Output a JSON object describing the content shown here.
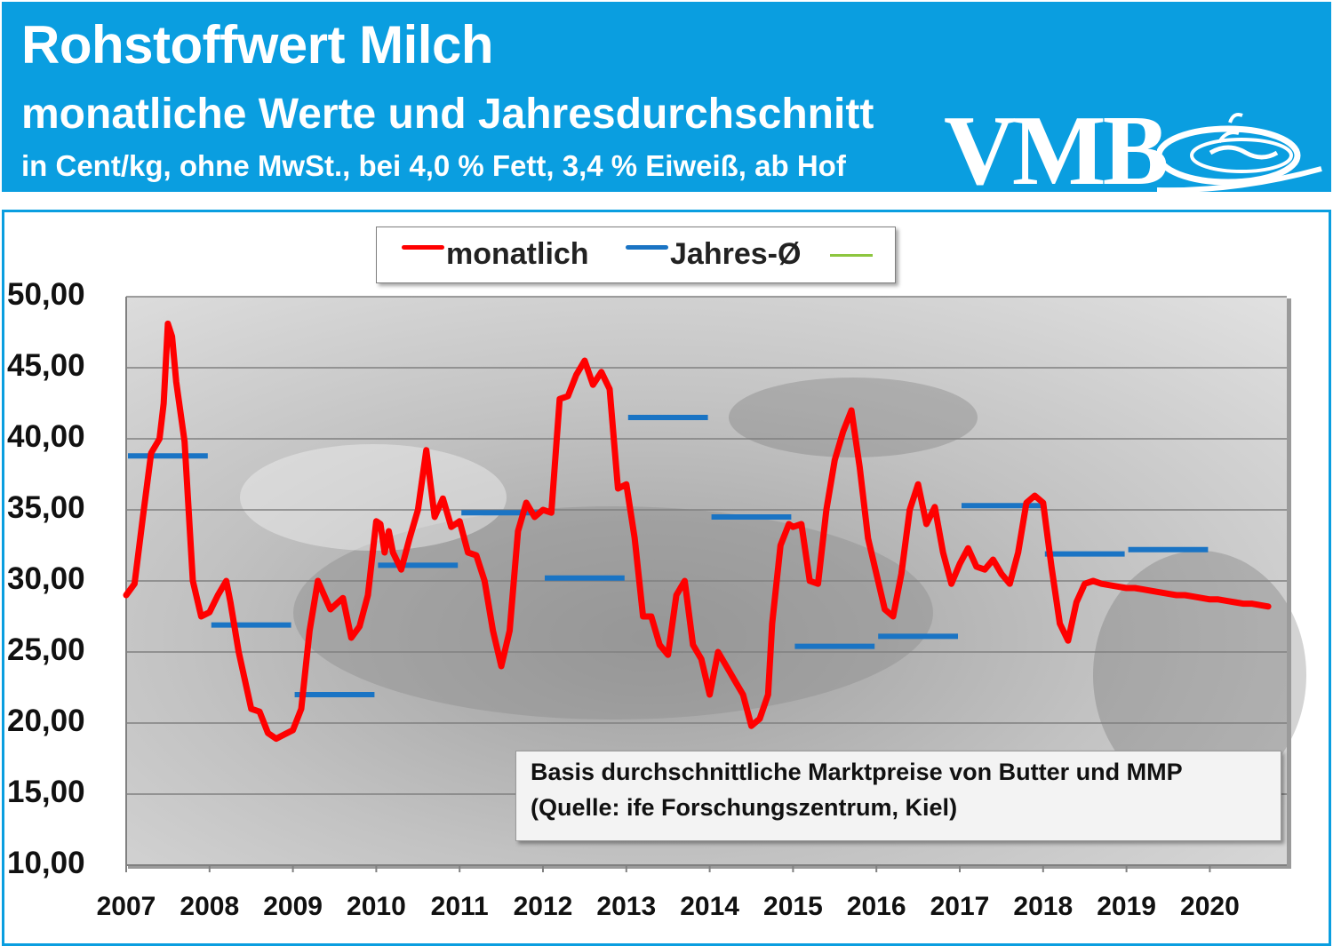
{
  "header": {
    "title": "Rohstoffwert Milch",
    "subtitle": "monatliche Werte und Jahresdurchschnitt",
    "subtitle2": "in Cent/kg, ohne MwSt., bei 4,0 % Fett, 3,4 % Eiweiß, ab Hof",
    "logo_text": "VMB"
  },
  "legend": {
    "monthly_label": "monatlich",
    "annual_label": "Jahres-Ø"
  },
  "note": {
    "line1": "Basis durchschnittliche Marktpreise von Butter und MMP",
    "line2": "(Quelle: ife Forschungszentrum, Kiel)"
  },
  "colors": {
    "header_bg": "#0a9ee0",
    "monthly": "#ff0000",
    "annual": "#1a74c4",
    "legend_third": "#8dc63f"
  },
  "chart_data": {
    "type": "line",
    "ylim": [
      10,
      50
    ],
    "xlim": [
      2007,
      2021
    ],
    "y_ticks": [
      "50,00",
      "45,00",
      "40,00",
      "35,00",
      "30,00",
      "25,00",
      "20,00",
      "15,00",
      "10,00"
    ],
    "x_ticks": [
      "2007",
      "2008",
      "2009",
      "2010",
      "2011",
      "2012",
      "2013",
      "2014",
      "2015",
      "2016",
      "2017",
      "2018",
      "2019",
      "2020"
    ],
    "series": [
      {
        "name": "monatlich",
        "x": [
          2007.0,
          2007.1,
          2007.2,
          2007.3,
          2007.4,
          2007.45,
          2007.5,
          2007.55,
          2007.6,
          2007.7,
          2007.8,
          2007.9,
          2008.0,
          2008.1,
          2008.2,
          2008.25,
          2008.35,
          2008.5,
          2008.6,
          2008.7,
          2008.8,
          2008.9,
          2009.0,
          2009.1,
          2009.2,
          2009.3,
          2009.45,
          2009.6,
          2009.7,
          2009.8,
          2009.9,
          2010.0,
          2010.05,
          2010.1,
          2010.15,
          2010.2,
          2010.3,
          2010.4,
          2010.5,
          2010.6,
          2010.7,
          2010.8,
          2010.9,
          2011.0,
          2011.1,
          2011.2,
          2011.3,
          2011.4,
          2011.5,
          2011.6,
          2011.7,
          2011.8,
          2011.9,
          2012.0,
          2012.1,
          2012.2,
          2012.3,
          2012.4,
          2012.5,
          2012.6,
          2012.7,
          2012.8,
          2012.9,
          2013.0,
          2013.1,
          2013.2,
          2013.3,
          2013.4,
          2013.5,
          2013.6,
          2013.7,
          2013.8,
          2013.9,
          2014.0,
          2014.1,
          2014.2,
          2014.3,
          2014.4,
          2014.5,
          2014.6,
          2014.7,
          2014.75,
          2014.85,
          2014.95,
          2015.0,
          2015.1,
          2015.2,
          2015.3,
          2015.4,
          2015.5,
          2015.6,
          2015.7,
          2015.8,
          2015.9,
          2016.0,
          2016.1,
          2016.2,
          2016.3,
          2016.4,
          2016.5,
          2016.6,
          2016.7,
          2016.8,
          2016.9,
          2017.0,
          2017.1,
          2017.2,
          2017.3,
          2017.4,
          2017.5,
          2017.6,
          2017.7,
          2017.8,
          2017.9,
          2018.0,
          2018.1,
          2018.2,
          2018.3,
          2018.4,
          2018.5,
          2018.6,
          2018.7,
          2018.8,
          2018.9,
          2019.0,
          2019.1,
          2019.2,
          2019.3,
          2019.4,
          2019.5,
          2019.6,
          2019.7,
          2019.8,
          2019.9,
          2020.0,
          2020.1,
          2020.2,
          2020.3,
          2020.4,
          2020.5,
          2020.6,
          2020.7
        ],
        "values": [
          29.0,
          29.8,
          34.5,
          39.0,
          40.0,
          42.5,
          48.1,
          47.2,
          44.0,
          39.8,
          30.0,
          27.5,
          27.8,
          29.0,
          30.0,
          28.5,
          25.0,
          21.0,
          20.8,
          19.3,
          18.9,
          19.2,
          19.5,
          21.0,
          26.5,
          30.0,
          28.0,
          28.8,
          26.0,
          26.8,
          29.0,
          34.2,
          34.0,
          32.0,
          33.5,
          32.0,
          30.8,
          33.0,
          35.0,
          39.2,
          34.5,
          35.8,
          33.8,
          34.2,
          32.0,
          31.8,
          30.0,
          26.5,
          24.0,
          26.5,
          33.5,
          35.5,
          34.5,
          35.0,
          34.8,
          42.8,
          43.0,
          44.5,
          45.5,
          43.8,
          44.7,
          43.5,
          36.5,
          36.8,
          33.0,
          27.5,
          27.5,
          25.5,
          24.8,
          29.0,
          30.0,
          25.5,
          24.5,
          22.0,
          25.0,
          24.0,
          23.0,
          22.0,
          19.8,
          20.3,
          22.0,
          27.0,
          32.5,
          34.0,
          33.8,
          34.0,
          30.0,
          29.8,
          35.0,
          38.5,
          40.5,
          42.0,
          38.0,
          33.0,
          30.5,
          28.0,
          27.5,
          30.5,
          35.0,
          36.8,
          34.0,
          35.2,
          32.0,
          29.8,
          31.2,
          32.3,
          31.0,
          30.8,
          31.5,
          30.5,
          29.8,
          32.0,
          35.5,
          36.0,
          35.5,
          31.0,
          27.0,
          25.8,
          28.5,
          29.8,
          30.0,
          29.8,
          29.7,
          29.6,
          29.5,
          29.5,
          29.4,
          29.3,
          29.2,
          29.1,
          29.0,
          29.0,
          28.9,
          28.8,
          28.7,
          28.7,
          28.6,
          28.5,
          28.4,
          28.4,
          28.3,
          28.2
        ]
      },
      {
        "name": "Jahres-Ø",
        "years": [
          2007,
          2008,
          2009,
          2010,
          2011,
          2012,
          2013,
          2014,
          2015,
          2016,
          2017,
          2018,
          2019
        ],
        "values": [
          38.8,
          26.9,
          22.0,
          31.1,
          34.8,
          30.2,
          41.5,
          34.5,
          25.4,
          26.1,
          35.3,
          31.9,
          32.2
        ]
      }
    ]
  }
}
